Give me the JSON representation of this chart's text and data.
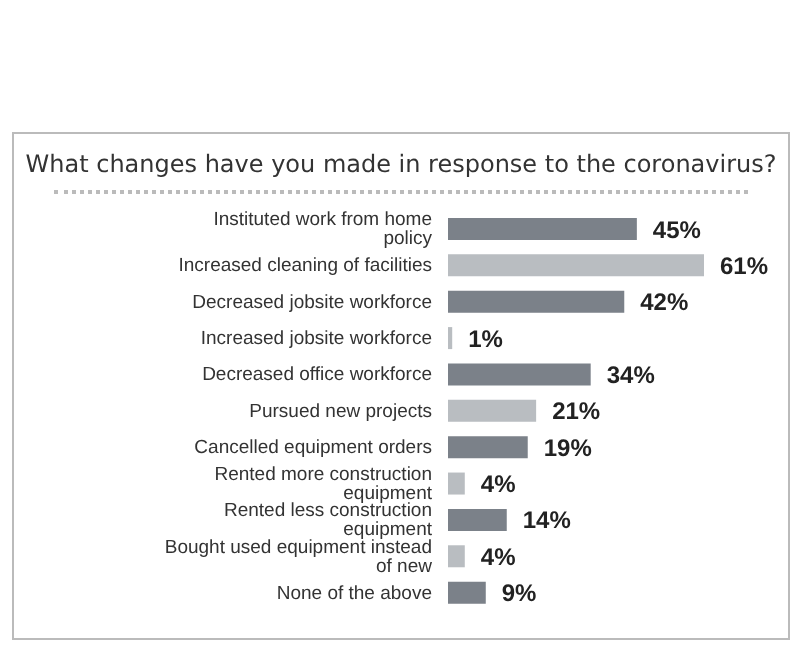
{
  "chart_data": {
    "type": "bar",
    "orientation": "horizontal",
    "title": "What changes have you made in response to the coronavirus?",
    "categories": [
      "Instituted work from home policy",
      "Increased cleaning of facilities",
      "Decreased jobsite workforce",
      "Increased jobsite workforce",
      "Decreased office workforce",
      "Pursued new projects",
      "Cancelled equipment orders",
      "Rented more construction equipment",
      "Rented less construction equipment",
      "Bought used equipment instead of new",
      "None of the above"
    ],
    "values": [
      45,
      61,
      42,
      1,
      34,
      21,
      19,
      4,
      14,
      4,
      9
    ],
    "colors": [
      "#7b8189",
      "#b9bdc1",
      "#7b8189",
      "#b9bdc1",
      "#7b8189",
      "#b9bdc1",
      "#7b8189",
      "#b9bdc1",
      "#7b8189",
      "#b9bdc1",
      "#7b8189"
    ],
    "value_labels": [
      "45%",
      "61%",
      "42%",
      "1%",
      "34%",
      "21%",
      "19%",
      "4%",
      "14%",
      "4%",
      "9%"
    ],
    "grid": false,
    "legend": false
  }
}
